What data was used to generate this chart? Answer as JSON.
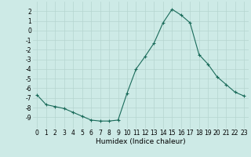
{
  "x": [
    0,
    1,
    2,
    3,
    4,
    5,
    6,
    7,
    8,
    9,
    10,
    11,
    12,
    13,
    14,
    15,
    16,
    17,
    18,
    19,
    20,
    21,
    22,
    23
  ],
  "y": [
    -6.7,
    -7.7,
    -7.9,
    -8.1,
    -8.5,
    -8.9,
    -9.3,
    -9.4,
    -9.4,
    -9.3,
    -6.5,
    -4.0,
    -2.7,
    -1.3,
    0.8,
    2.2,
    1.6,
    0.8,
    -2.5,
    -3.5,
    -4.8,
    -5.6,
    -6.4,
    -6.8
  ],
  "line_color": "#1a6b5a",
  "bg_color": "#cdeae6",
  "grid_color": "#b5d5d0",
  "xlabel": "Humidex (Indice chaleur)",
  "ylim": [
    -10.2,
    3.0
  ],
  "xlim": [
    -0.5,
    23.5
  ],
  "yticks": [
    2,
    1,
    0,
    -1,
    -2,
    -3,
    -4,
    -5,
    -6,
    -7,
    -8,
    -9
  ],
  "xticks": [
    0,
    1,
    2,
    3,
    4,
    5,
    6,
    7,
    8,
    9,
    10,
    11,
    12,
    13,
    14,
    15,
    16,
    17,
    18,
    19,
    20,
    21,
    22,
    23
  ],
  "tick_label_fontsize": 5.5,
  "xlabel_fontsize": 6.5,
  "marker": "+"
}
